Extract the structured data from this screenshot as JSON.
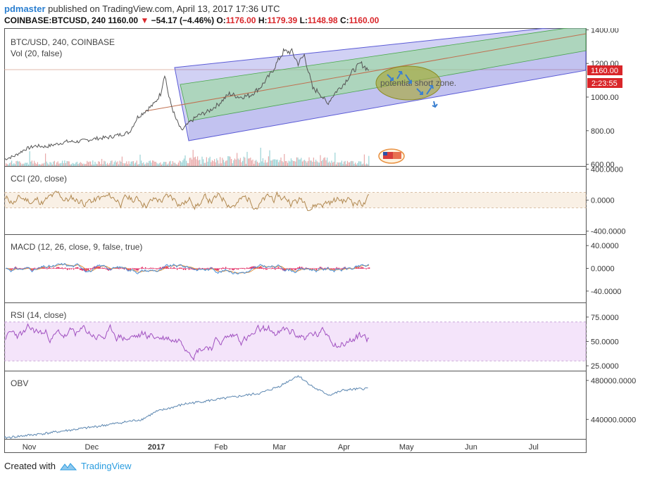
{
  "header": {
    "user": "pdmaster",
    "published_text": "published on TradingView.com, April 13, 2017 17:36 UTC",
    "symbol": "COINBASE:BTCUSD, 240",
    "price": "1160.00",
    "change": "−54.17 (−4.46%)",
    "o_label": "O:",
    "o_val": "1176.00",
    "h_label": "H:",
    "h_val": "1179.39",
    "l_label": "L:",
    "l_val": "1148.98",
    "c_label": "C:",
    "c_val": "1160.00"
  },
  "footer": {
    "created_with": "Created with",
    "brand": "TradingView"
  },
  "colors": {
    "up_arrow": "#4a7fc1",
    "price_line": "#555555",
    "channel_outer": "#5b5bd6",
    "channel_inner": "#8fd88f",
    "zone": "#a8a83a",
    "cci": "#b08850",
    "macd_line": "#4a90d9",
    "signal_line": "#e0903a",
    "hist": "#e0245e",
    "rsi": "#a050c0",
    "obv": "#5b86b0",
    "price_badge": "#d9262a"
  },
  "chart_data": [
    {
      "type": "line",
      "title": "BTC/USD, 240, COINBASE",
      "subtitle": "Vol (20, false)",
      "x_ticks": [
        "Nov",
        "Dec",
        "2017",
        "Feb",
        "Mar",
        "Apr",
        "May",
        "Jun",
        "Jul"
      ],
      "y_ticks": [
        "1400.00",
        "1200.00",
        "1000.00",
        "800.00",
        "600.00"
      ],
      "ylim": [
        590,
        1410
      ],
      "last_price_label": "1160.00",
      "countdown_label": "2:23:55",
      "annotation": "potential short zone.",
      "x": [
        "Oct 20",
        "Oct 25",
        "Oct 30",
        "Nov 4",
        "Nov 9",
        "Nov 14",
        "Nov 19",
        "Nov 24",
        "Nov 29",
        "Dec 4",
        "Dec 9",
        "Dec 14",
        "Dec 19",
        "Dec 23",
        "Dec 27",
        "Dec 31",
        "Jan 3",
        "Jan 5",
        "Jan 7",
        "Jan 10",
        "Jan 13",
        "Jan 17",
        "Jan 21",
        "Jan 26",
        "Jan 31",
        "Feb 5",
        "Feb 10",
        "Feb 15",
        "Feb 20",
        "Feb 25",
        "Mar 1",
        "Mar 3",
        "Mar 7",
        "Mar 10",
        "Mar 13",
        "Mar 17",
        "Mar 20",
        "Mar 24",
        "Mar 28",
        "Apr 1",
        "Apr 5",
        "Apr 9",
        "Apr 13"
      ],
      "values": [
        630,
        650,
        690,
        710,
        705,
        720,
        735,
        735,
        745,
        755,
        760,
        775,
        790,
        880,
        920,
        960,
        1020,
        1140,
        1000,
        880,
        800,
        850,
        890,
        915,
        960,
        1020,
        1000,
        1010,
        1060,
        1140,
        1230,
        1270,
        1270,
        1200,
        1250,
        1050,
        1030,
        960,
        1030,
        1080,
        1150,
        1200,
        1160
      ]
    },
    {
      "type": "line",
      "title": "CCI (20, close)",
      "y_ticks": [
        "400.0000",
        "0.0000",
        "-400.0000"
      ],
      "ylim": [
        -440,
        440
      ]
    },
    {
      "type": "line",
      "title": "MACD (12, 26, close, 9, false, true)",
      "y_ticks": [
        "40.0000",
        "0.0000",
        "-40.0000"
      ],
      "ylim": [
        -60,
        60
      ]
    },
    {
      "type": "line",
      "title": "RSI (14, close)",
      "y_ticks": [
        "75.0000",
        "50.0000",
        "25.0000"
      ],
      "ylim": [
        20,
        90
      ]
    },
    {
      "type": "line",
      "title": "OBV",
      "y_ticks": [
        "480000.0000",
        "440000.0000"
      ],
      "ylim": [
        420000,
        490000
      ],
      "x": [
        "Oct 20",
        "Nov 10",
        "Dec 1",
        "Dec 25",
        "Jan 1",
        "Jan 15",
        "Feb 1",
        "Feb 20",
        "Mar 1",
        "Mar 10",
        "Mar 18",
        "Mar 25",
        "Apr 1",
        "Apr 13"
      ],
      "values": [
        421000,
        426000,
        432000,
        440000,
        448000,
        456000,
        461000,
        467000,
        474000,
        485000,
        472000,
        465000,
        470000,
        472000
      ]
    }
  ]
}
